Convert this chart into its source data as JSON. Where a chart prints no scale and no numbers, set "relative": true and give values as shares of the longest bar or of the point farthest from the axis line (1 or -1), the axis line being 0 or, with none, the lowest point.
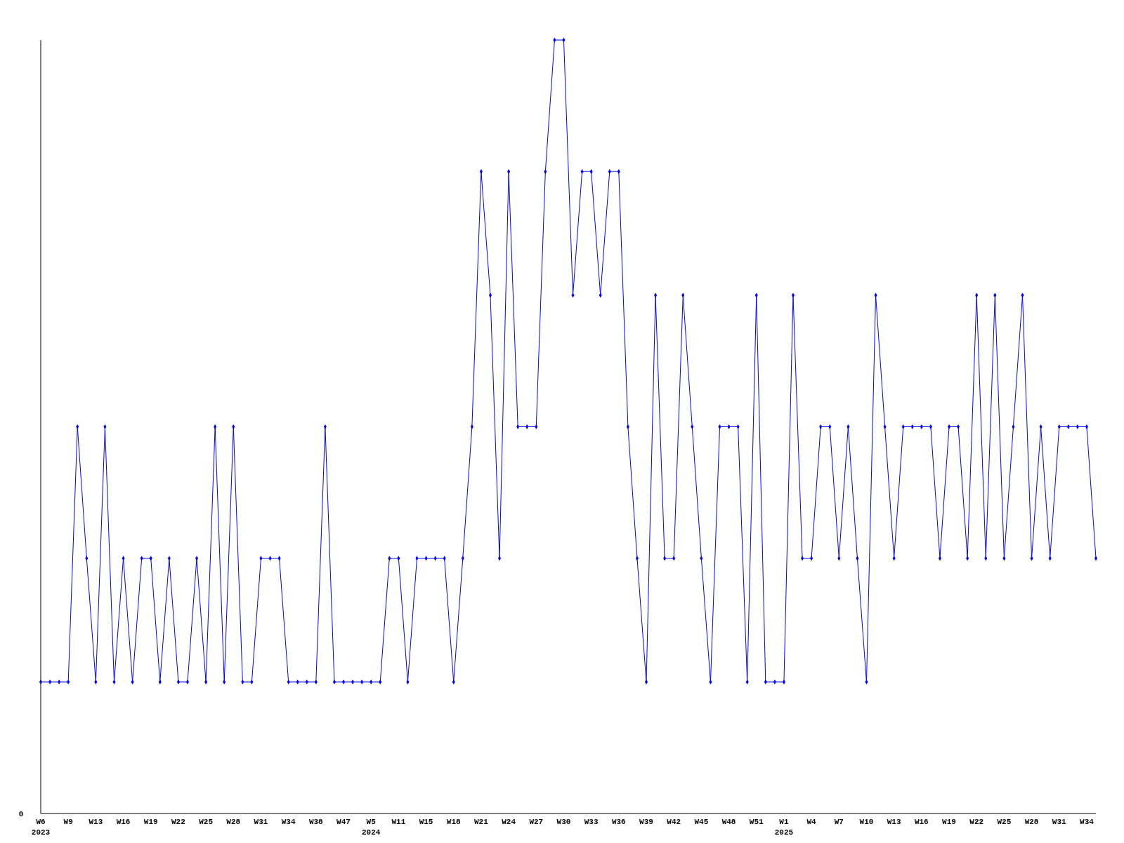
{
  "chart_data": {
    "type": "line",
    "relative": true,
    "marker": "diamond",
    "line_style": "solid",
    "annotations": [
      "0"
    ],
    "categories": [
      "W6\n2023",
      null,
      null,
      "W9",
      null,
      null,
      "W13",
      null,
      null,
      "W16",
      null,
      null,
      "W19",
      null,
      null,
      "W22",
      null,
      null,
      "W25",
      null,
      null,
      "W28",
      null,
      null,
      "W31",
      null,
      null,
      "W34",
      null,
      null,
      "W38",
      null,
      null,
      "W47",
      null,
      null,
      "W5\n2024",
      null,
      null,
      "W11",
      null,
      null,
      "W15",
      null,
      null,
      "W18",
      null,
      null,
      "W21",
      null,
      null,
      "W24",
      null,
      null,
      "W27",
      null,
      null,
      "W30",
      null,
      null,
      "W33",
      null,
      null,
      "W36",
      null,
      null,
      "W39",
      null,
      null,
      "W42",
      null,
      null,
      "W45",
      null,
      null,
      "W48",
      null,
      null,
      "W51",
      null,
      null,
      "W1\n2025",
      null,
      null,
      "W4",
      null,
      null,
      "W7",
      null,
      null,
      "W10",
      null,
      null,
      "W13",
      null,
      null,
      "W16",
      null,
      null,
      "W19",
      null,
      null,
      "W22",
      null,
      null,
      "W25",
      null,
      null,
      "W28",
      null,
      null,
      "W31",
      null,
      null,
      "W34",
      null
    ],
    "series": [
      {
        "color": "#0000ff",
        "values": [
          0.17,
          0.17,
          0.17,
          0.17,
          0.5,
          0.33,
          0.17,
          0.5,
          0.17,
          0.33,
          0.17,
          0.33,
          0.33,
          0.17,
          0.33,
          0.17,
          0.17,
          0.33,
          0.17,
          0.5,
          0.17,
          0.5,
          0.17,
          0.17,
          0.33,
          0.33,
          0.33,
          0.17,
          0.17,
          0.17,
          0.17,
          0.5,
          0.17,
          0.17,
          0.17,
          0.17,
          0.17,
          0.17,
          0.33,
          0.33,
          0.17,
          0.33,
          0.33,
          0.33,
          0.33,
          0.17,
          0.33,
          0.5,
          0.83,
          0.67,
          0.33,
          0.83,
          0.5,
          0.5,
          0.5,
          0.83,
          1,
          1,
          0.67,
          0.83,
          0.83,
          0.67,
          0.83,
          0.83,
          0.5,
          0.33,
          0.17,
          0.67,
          0.33,
          0.33,
          0.67,
          0.5,
          0.33,
          0.17,
          0.5,
          0.5,
          0.5,
          0.17,
          0.67,
          0.17,
          0.17,
          0.17,
          0.67,
          0.33,
          0.33,
          0.5,
          0.5,
          0.33,
          0.5,
          0.33,
          0.17,
          0.67,
          0.5,
          0.33,
          0.5,
          0.5,
          0.5,
          0.5,
          0.33,
          0.5,
          0.5,
          0.33,
          0.67,
          0.33,
          0.67,
          0.33,
          0.5,
          0.67,
          0.33,
          0.5,
          0.33,
          0.5,
          0.5,
          0.5,
          0.5,
          0.33
        ]
      }
    ]
  }
}
